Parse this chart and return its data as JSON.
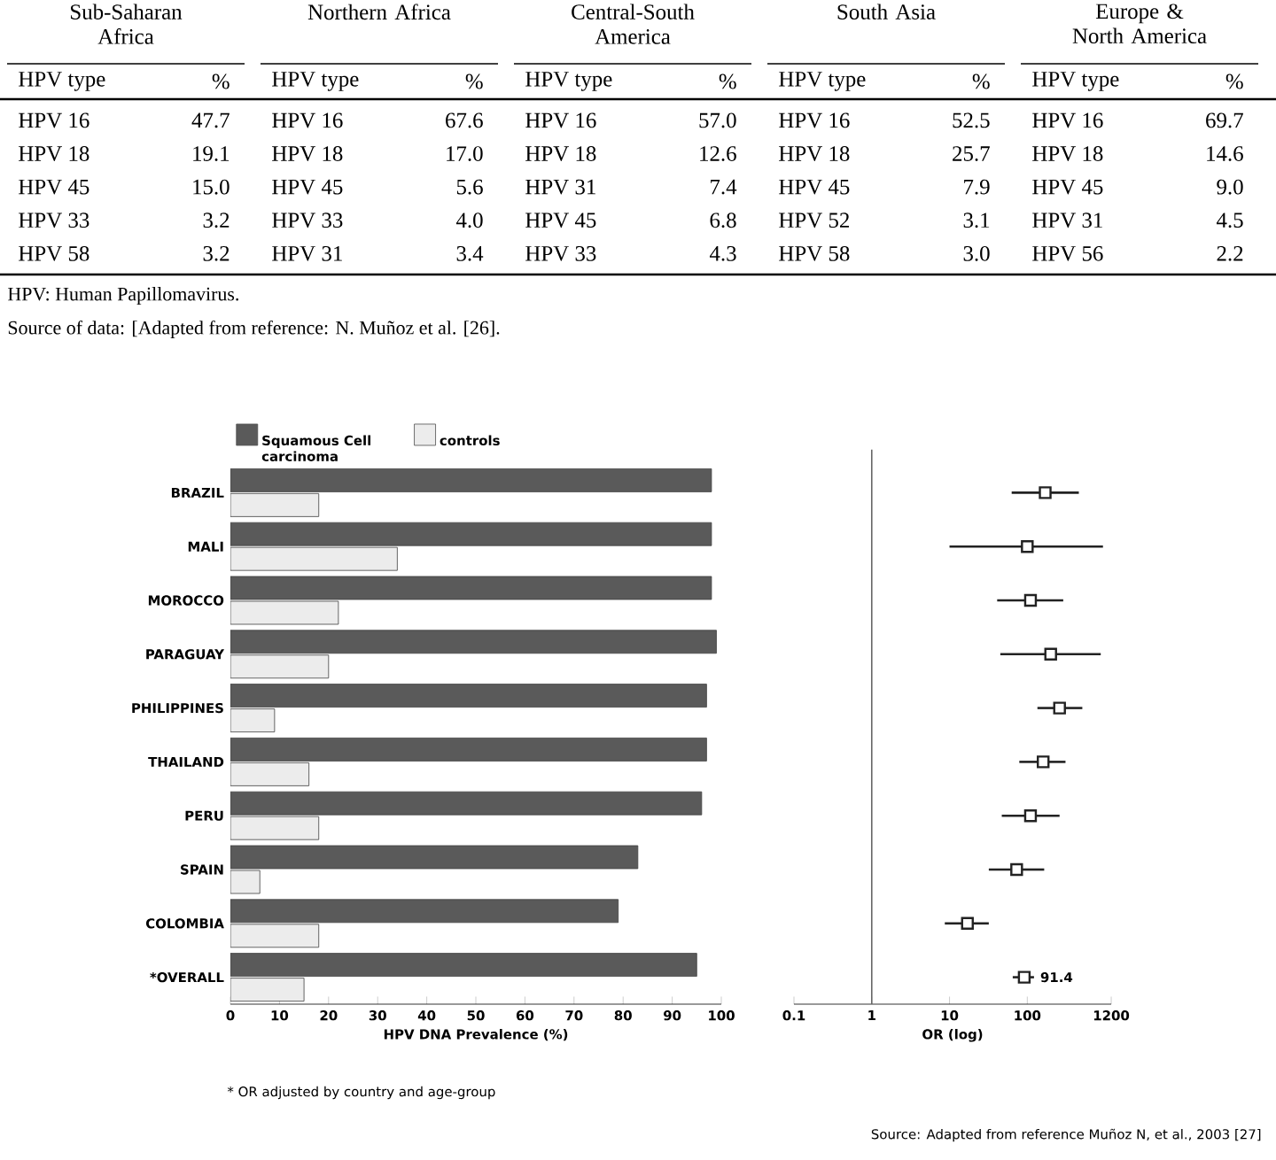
{
  "chart_data": [
    {
      "type": "other",
      "categories": [
        "Sub-Saharan Africa",
        "Northern Africa",
        "Central-South America",
        "South Asia",
        "Europe & North America"
      ],
      "cell_labels": [
        [
          "HPV type",
          "%",
          "HPV type",
          "%",
          "HPV type",
          "%",
          "HPV type",
          "%",
          "HPV type",
          "%"
        ],
        [
          "HPV 16",
          "47.7",
          "HPV 16",
          "67.6",
          "HPV 16",
          "57.0",
          "HPV 16",
          "52.5",
          "HPV 16",
          "69.7"
        ],
        [
          "HPV 18",
          "19.1",
          "HPV 18",
          "17.0",
          "HPV 18",
          "12.6",
          "HPV 18",
          "25.7",
          "HPV 18",
          "14.6"
        ],
        [
          "HPV 45",
          "15.0",
          "HPV 45",
          "5.6",
          "HPV 31",
          "7.4",
          "HPV 45",
          "7.9",
          "HPV 45",
          "9.0"
        ],
        [
          "HPV 33",
          "3.2",
          "HPV 33",
          "4.0",
          "HPV 45",
          "6.8",
          "HPV 52",
          "3.1",
          "HPV 31",
          "4.5"
        ],
        [
          "HPV 58",
          "3.2",
          "HPV 31",
          "3.4",
          "HPV 33",
          "4.3",
          "HPV 58",
          "3.0",
          "HPV 56",
          "2.2"
        ]
      ],
      "annotations": [
        "HPV: Human Papillomavirus.",
        "Source of data: [Adapted from reference: N. Muñoz et al. [26]."
      ]
    },
    {
      "type": "bar",
      "orientation": "horizontal",
      "categories": [
        "BRAZIL",
        "MALI",
        "MOROCCO",
        "PARAGUAY",
        "PHILIPPINES",
        "THAILAND",
        "PERU",
        "SPAIN",
        "COLOMBIA",
        "*OVERALL"
      ],
      "series": [
        {
          "name": "Squamous Cell carcinoma",
          "color": "#5a5a5a",
          "values": [
            98,
            98,
            98,
            99,
            97,
            97,
            96,
            83,
            79,
            95
          ]
        },
        {
          "name": "controls",
          "color": "#ececec",
          "values": [
            18,
            34,
            22,
            20,
            9,
            16,
            18,
            6,
            18,
            15
          ]
        }
      ],
      "xlabel": "HPV DNA Prevalence (%)",
      "xlim": [
        0,
        100
      ],
      "xticks": [
        0,
        10,
        20,
        30,
        40,
        50,
        60,
        70,
        80,
        90,
        100
      ],
      "legend": "top",
      "annotations": [
        "* OR adjusted by country and age-group",
        "Source: Adapted from reference Muñoz N, et al., 2003 [27]"
      ]
    },
    {
      "type": "scatter",
      "orientation": "horizontal",
      "categories": [
        null,
        null,
        null,
        null,
        null,
        null,
        null,
        null,
        null,
        null
      ],
      "values": [
        170,
        100,
        110,
        200,
        260,
        160,
        110,
        73,
        17,
        91.4
      ],
      "errors": [
        [
          63,
          460
        ],
        [
          10,
          940
        ],
        [
          41,
          290
        ],
        [
          45,
          880
        ],
        [
          135,
          510
        ],
        [
          79,
          310
        ],
        [
          47,
          260
        ],
        [
          32,
          165
        ],
        [
          8.7,
          32
        ],
        [
          65,
          122
        ]
      ],
      "value_labels": [
        null,
        null,
        null,
        null,
        null,
        null,
        null,
        null,
        null,
        "91.4"
      ],
      "color": "#222222",
      "marker": "square",
      "xlabel": "OR (log)",
      "log": "x",
      "xlim": [
        0.1,
        1200
      ],
      "xticks": [
        0.1,
        1,
        10,
        100,
        1200
      ],
      "ref_lines": [
        {
          "axis": "x",
          "value": 1
        }
      ]
    }
  ]
}
